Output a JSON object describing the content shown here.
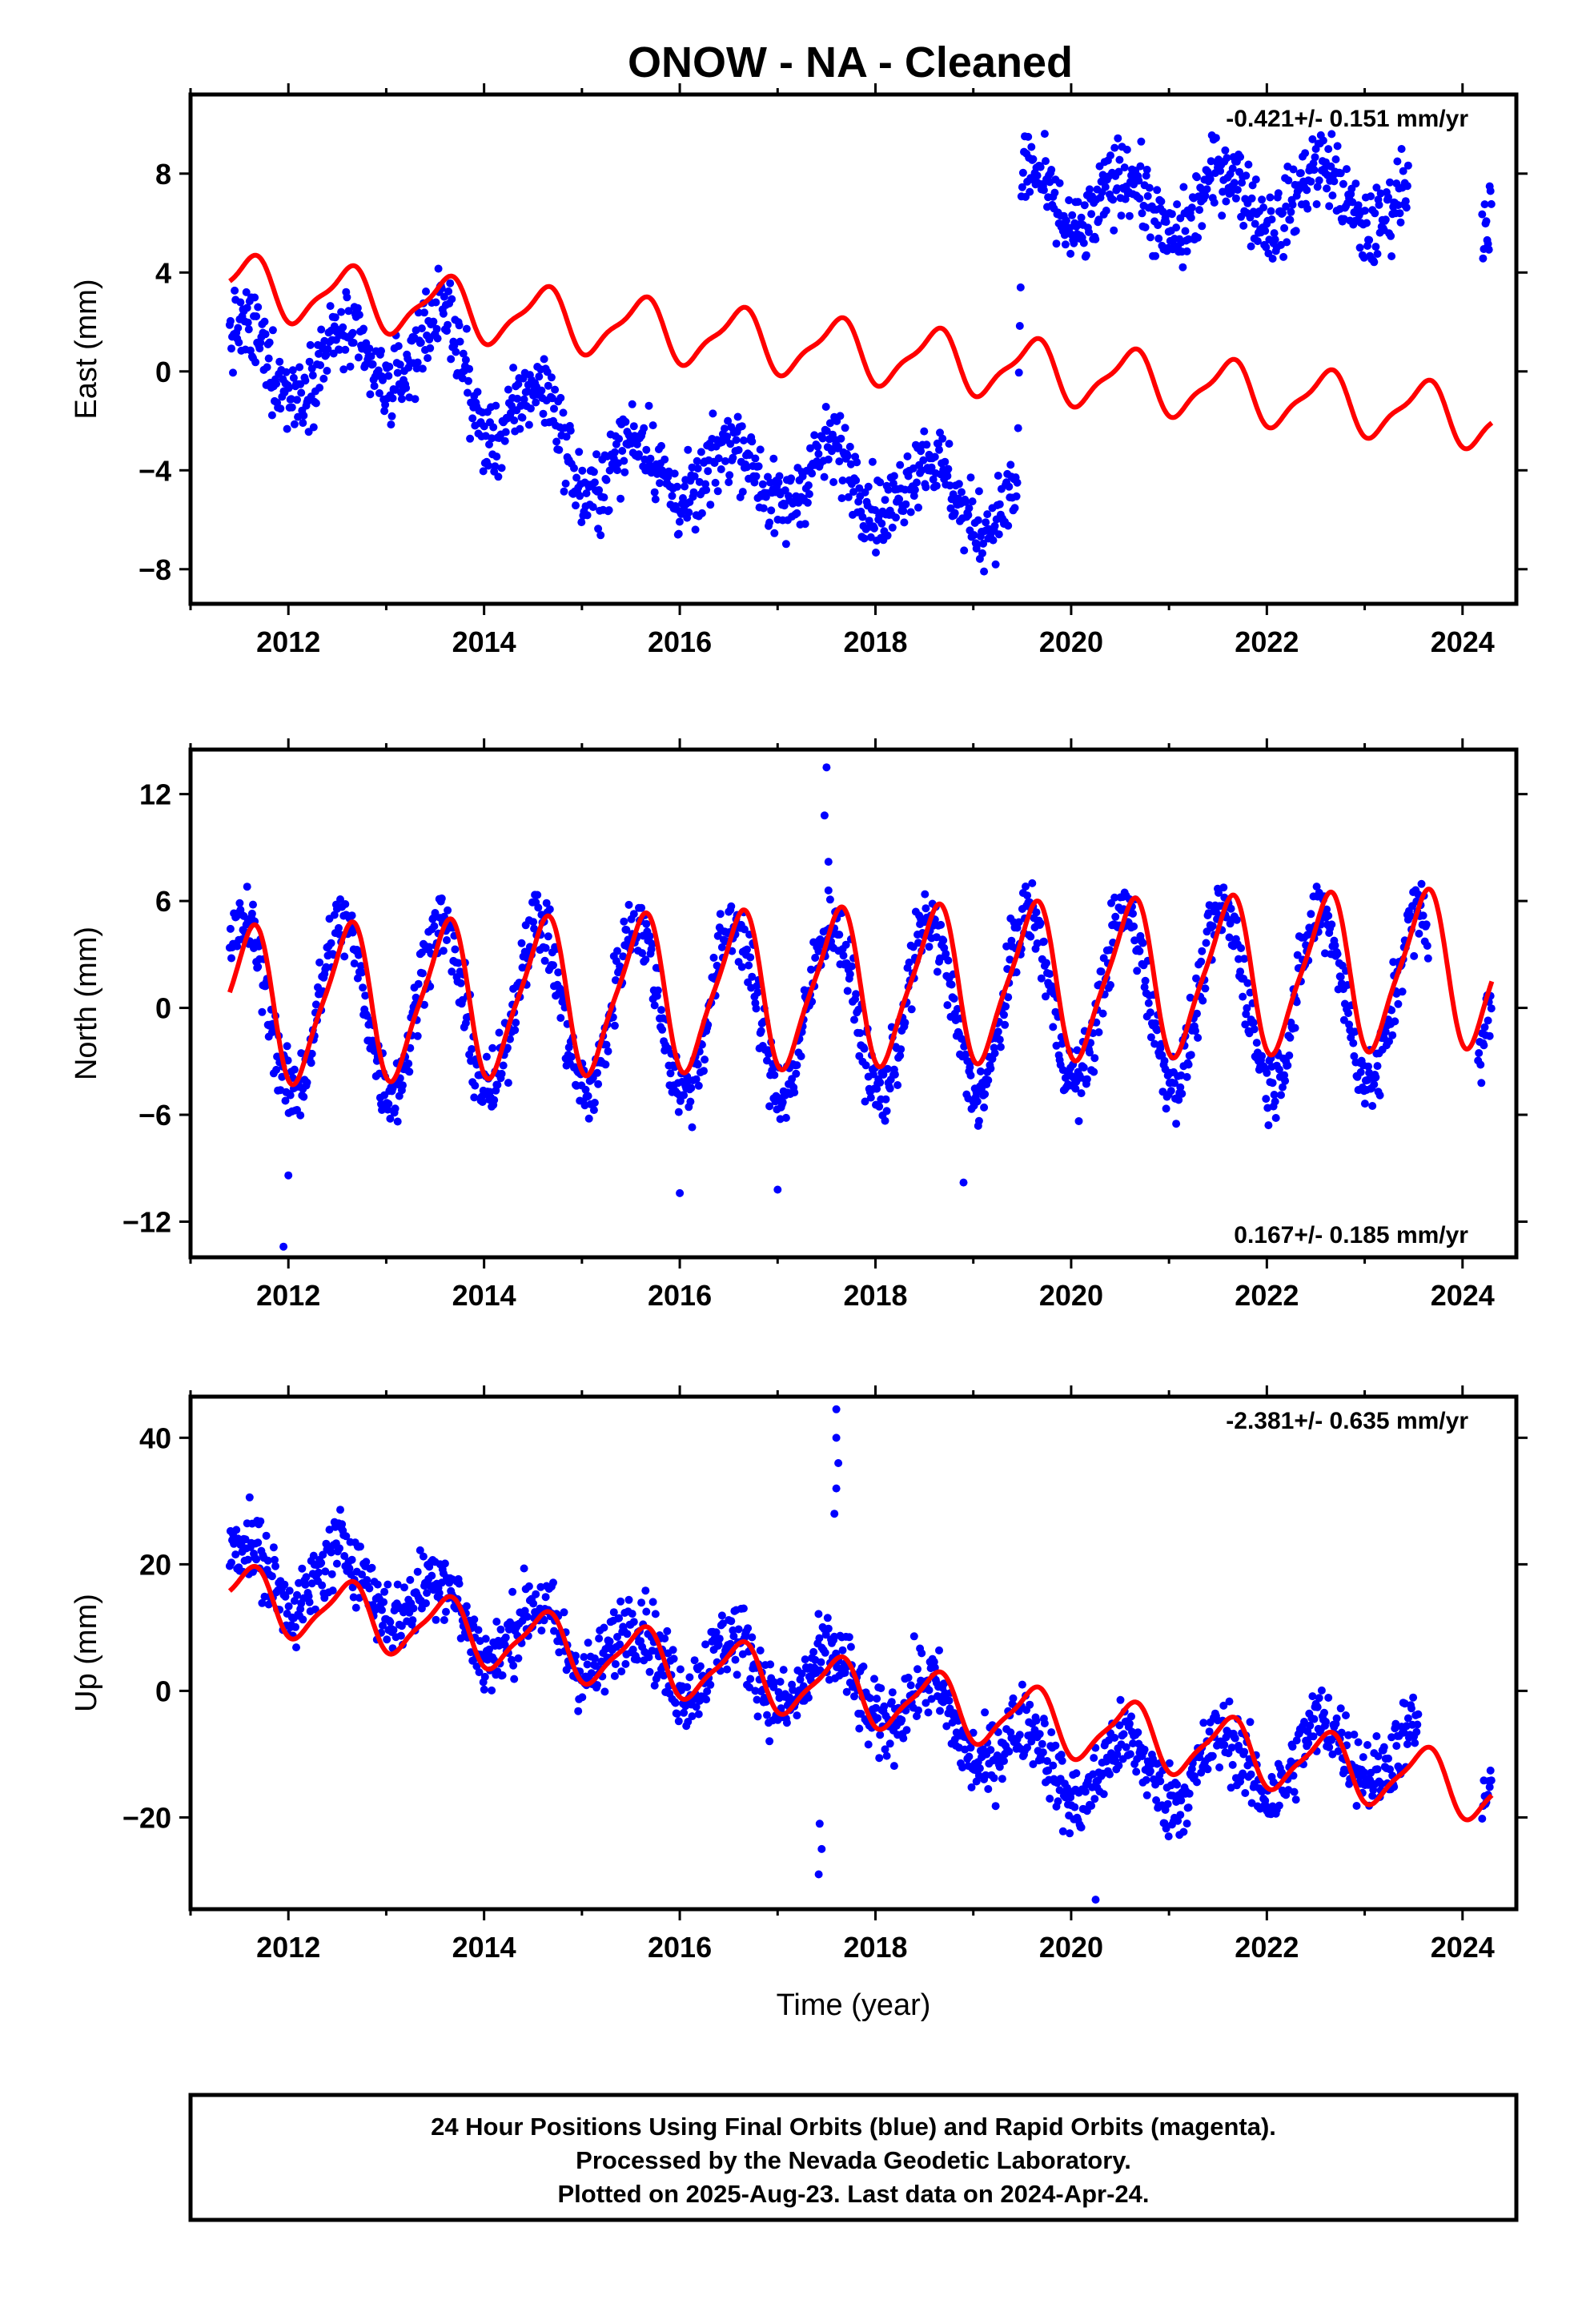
{
  "title": "ONOW  - NA - Cleaned",
  "colors": {
    "final_orbits": "#0000ff",
    "model": "#ff0000",
    "frame": "#000000"
  },
  "x_axis_label": "Time (year)",
  "footer": {
    "line1": "24 Hour Positions Using Final Orbits (blue) and Rapid Orbits (magenta).",
    "line2": "Processed by the Nevada Geodetic Laboratory.",
    "line3": "Plotted on 2025-Aug-23. Last data on 2024-Apr-24."
  },
  "chart_data": [
    {
      "type": "scatter",
      "component": "east",
      "ylabel": "East (mm)",
      "rate": "-0.421+/- 0.151 mm/yr",
      "rate_position": "top-right",
      "xlim": [
        2011.0,
        2024.55
      ],
      "ylim": [
        -9.4,
        11.2
      ],
      "x_ticks": [
        2012,
        2014,
        2016,
        2018,
        2020,
        2022,
        2024
      ],
      "y_ticks": [
        -8,
        -4,
        0,
        4,
        8
      ],
      "series": [
        {
          "kind": "points",
          "color": "#0000ff",
          "trend_anchors": [
            [
              2011.4,
              0.6
            ],
            [
              2012.5,
              0.2
            ],
            [
              2013.65,
              1.2
            ],
            [
              2014.0,
              -1.5
            ],
            [
              2014.7,
              -2.0
            ],
            [
              2015.0,
              -3.8
            ],
            [
              2016.0,
              -4.0
            ],
            [
              2017.0,
              -4.2
            ],
            [
              2018.0,
              -4.4
            ],
            [
              2019.0,
              -5.0
            ],
            [
              2019.45,
              -5.8
            ],
            [
              2019.5,
              7.0
            ],
            [
              2021.0,
              6.6
            ],
            [
              2022.0,
              7.2
            ],
            [
              2023.3,
              6.9
            ],
            [
              2024.3,
              6.6
            ]
          ],
          "annual_amplitude": 1.3,
          "scatter": 1.1,
          "gaps": [
            [
              2023.45,
              2024.2
            ]
          ]
        },
        {
          "kind": "model",
          "color": "#ff0000",
          "offset": 3.5,
          "slope": -0.421,
          "annual_amplitude": 1.15,
          "semiannual_amplitude": 0.35,
          "x_range": [
            2011.4,
            2024.3
          ]
        }
      ]
    },
    {
      "type": "scatter",
      "component": "north",
      "ylabel": "North (mm)",
      "rate": "0.167+/- 0.185 mm/yr",
      "rate_position": "bottom-right",
      "xlim": [
        2011.0,
        2024.55
      ],
      "ylim": [
        -14.0,
        14.5
      ],
      "x_ticks": [
        2012,
        2014,
        2016,
        2018,
        2020,
        2022,
        2024
      ],
      "y_ticks": [
        -12,
        -6,
        0,
        6,
        12
      ],
      "series": [
        {
          "kind": "points",
          "color": "#0000ff",
          "trend_anchors": [
            [
              2011.4,
              0.0
            ],
            [
              2019.45,
              0.0
            ],
            [
              2019.5,
              0.6
            ],
            [
              2024.3,
              0.6
            ]
          ],
          "annual_amplitude": 4.8,
          "scatter": 1.4,
          "gaps": [
            [
              2023.65,
              2024.15
            ]
          ],
          "outliers": [
            [
              2017.5,
              13.5
            ],
            [
              2017.48,
              10.8
            ],
            [
              2017.52,
              8.2
            ],
            [
              2011.95,
              -13.4
            ],
            [
              2016.0,
              -10.4
            ],
            [
              2017.0,
              -10.2
            ],
            [
              2018.9,
              -9.8
            ],
            [
              2012.0,
              -9.4
            ]
          ]
        },
        {
          "kind": "model",
          "color": "#ff0000",
          "offset": 0.1,
          "slope": 0.167,
          "annual_amplitude": 4.2,
          "semiannual_amplitude": 0.9,
          "x_range": [
            2011.4,
            2024.3
          ]
        }
      ]
    },
    {
      "type": "scatter",
      "component": "up",
      "ylabel": "Up (mm)",
      "rate": "-2.381+/- 0.635 mm/yr",
      "rate_position": "top-right",
      "xlim": [
        2011.0,
        2024.55
      ],
      "ylim": [
        -34.5,
        46.5
      ],
      "x_ticks": [
        2012,
        2014,
        2016,
        2018,
        2020,
        2022,
        2024
      ],
      "y_ticks": [
        -20,
        0,
        20,
        40
      ],
      "series": [
        {
          "kind": "points",
          "color": "#0000ff",
          "trend_anchors": [
            [
              2011.4,
              19.0
            ],
            [
              2013.0,
              17.0
            ],
            [
              2014.0,
              10.0
            ],
            [
              2016.0,
              5.0
            ],
            [
              2018.0,
              0.0
            ],
            [
              2020.0,
              -13.0
            ],
            [
              2022.0,
              -12.0
            ],
            [
              2023.0,
              -8.0
            ],
            [
              2024.3,
              -15.0
            ]
          ],
          "annual_amplitude": 5.0,
          "scatter": 4.2,
          "gaps": [
            [
              2023.55,
              2024.2
            ]
          ],
          "outliers": [
            [
              2017.6,
              44.5
            ],
            [
              2017.6,
              40.0
            ],
            [
              2017.62,
              36.0
            ],
            [
              2017.6,
              32.0
            ],
            [
              2017.58,
              28.0
            ],
            [
              2017.42,
              -29.0
            ],
            [
              2017.45,
              -25.0
            ],
            [
              2017.43,
              -21.0
            ],
            [
              2020.25,
              -33.0
            ]
          ]
        },
        {
          "kind": "model",
          "color": "#ff0000",
          "offset": 15.0,
          "slope": -2.381,
          "annual_amplitude": 4.8,
          "semiannual_amplitude": 1.2,
          "x_range": [
            2011.4,
            2024.3
          ]
        }
      ]
    }
  ]
}
